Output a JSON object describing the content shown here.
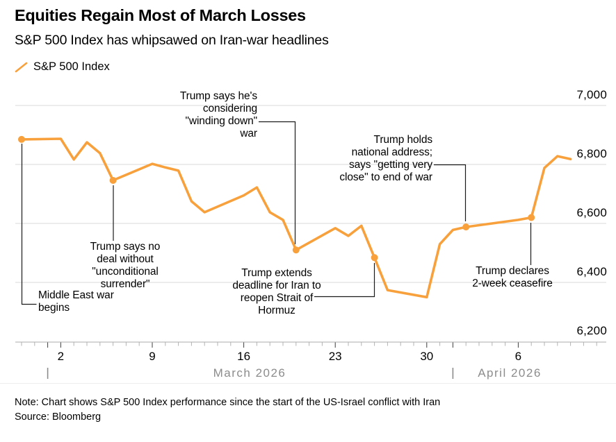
{
  "header": {
    "title": "Equities Regain Most of March Losses",
    "subtitle": "S&P 500 Index has whipsawed on Iran-war headlines"
  },
  "footer": {
    "note": "Note: Chart shows S&P 500 Index performance since the start of the US-Israel conflict with Iran",
    "source": "Source: Bloomberg"
  },
  "colors": {
    "series_orange": "#F8A13C",
    "gridline": "#D9D9D9",
    "axis_line": "#ABABAB",
    "minor_tick": "#B3B3B3",
    "major_tick": "#3C3C3C",
    "month_gray": "#8C8C8C",
    "connector": "#1A1A1A"
  },
  "chart_data": {
    "type": "line",
    "title": "Equities Regain Most of March Losses",
    "subtitle": "S&P 500 Index has whipsawed on Iran-war headlines",
    "legend": [
      {
        "label": "S&P 500 Index",
        "color": "#F8A13C"
      }
    ],
    "ylim": [
      6200,
      7000
    ],
    "grid": true,
    "legend_position": "top-left",
    "y_ticks": [
      {
        "value": 7000,
        "label": "7,000"
      },
      {
        "value": 6800,
        "label": "6,800"
      },
      {
        "value": 6600,
        "label": "6,600"
      },
      {
        "value": 6400,
        "label": "6,400"
      },
      {
        "value": 6200,
        "label": "6,200"
      }
    ],
    "x_ticks": [
      {
        "day": 3,
        "label": "2"
      },
      {
        "day": 10,
        "label": "9"
      },
      {
        "day": 17,
        "label": "16"
      },
      {
        "day": 24,
        "label": "23"
      },
      {
        "day": 31,
        "label": "30"
      },
      {
        "day": 38,
        "label": "6"
      }
    ],
    "months": [
      {
        "day": 2,
        "label": "March 2026"
      },
      {
        "day": 33,
        "label": "April 2026"
      }
    ],
    "series": [
      {
        "name": "S&P 500 Index",
        "color": "#F8A13C",
        "points": [
          {
            "day": 0,
            "date": "Feb 27",
            "value": 6885
          },
          {
            "day": 3,
            "date": "Mar 2",
            "value": 6887
          },
          {
            "day": 4,
            "date": "Mar 3",
            "value": 6817
          },
          {
            "day": 5,
            "date": "Mar 4",
            "value": 6875
          },
          {
            "day": 6,
            "date": "Mar 5",
            "value": 6838
          },
          {
            "day": 7,
            "date": "Mar 6",
            "value": 6746
          },
          {
            "day": 10,
            "date": "Mar 9",
            "value": 6802
          },
          {
            "day": 11,
            "date": "Mar 10",
            "value": 6790
          },
          {
            "day": 12,
            "date": "Mar 11",
            "value": 6779
          },
          {
            "day": 13,
            "date": "Mar 12",
            "value": 6675
          },
          {
            "day": 14,
            "date": "Mar 13",
            "value": 6638
          },
          {
            "day": 17,
            "date": "Mar 16",
            "value": 6695
          },
          {
            "day": 18,
            "date": "Mar 17",
            "value": 6722
          },
          {
            "day": 19,
            "date": "Mar 18",
            "value": 6638
          },
          {
            "day": 20,
            "date": "Mar 19",
            "value": 6612
          },
          {
            "day": 21,
            "date": "Mar 20",
            "value": 6510
          },
          {
            "day": 24,
            "date": "Mar 23",
            "value": 6584
          },
          {
            "day": 25,
            "date": "Mar 24",
            "value": 6558
          },
          {
            "day": 26,
            "date": "Mar 25",
            "value": 6592
          },
          {
            "day": 27,
            "date": "Mar 26",
            "value": 6484
          },
          {
            "day": 28,
            "date": "Mar 27",
            "value": 6374
          },
          {
            "day": 31,
            "date": "Mar 30",
            "value": 6350
          },
          {
            "day": 32,
            "date": "Mar 31",
            "value": 6530
          },
          {
            "day": 33,
            "date": "Apr 1",
            "value": 6578
          },
          {
            "day": 34,
            "date": "Apr 2",
            "value": 6588
          },
          {
            "day": 38,
            "date": "Apr 6",
            "value": 6612
          },
          {
            "day": 39,
            "date": "Apr 7",
            "value": 6620
          },
          {
            "day": 40,
            "date": "Apr 8",
            "value": 6788
          },
          {
            "day": 41,
            "date": "Apr 9",
            "value": 6828
          },
          {
            "day": 42,
            "date": "Apr 10",
            "value": 6818
          }
        ]
      }
    ],
    "events": [
      {
        "id": "war",
        "day": 0,
        "date": "Feb 27",
        "value": 6885,
        "text": "Middle East war\nbegins"
      },
      {
        "id": "surrender",
        "day": 7,
        "date": "Mar 6",
        "value": 6746,
        "text": "Trump says no\ndeal without\n\"unconditional\nsurrender\""
      },
      {
        "id": "winding",
        "day": 21,
        "date": "Mar 20",
        "value": 6510,
        "text": "Trump says he's\nconsidering\n\"winding down\"\nwar"
      },
      {
        "id": "hormuz",
        "day": 27,
        "date": "Mar 26",
        "value": 6484,
        "text": "Trump extends\ndeadline for Iran to\nreopen Strait of\nHormuz"
      },
      {
        "id": "address",
        "day": 34,
        "date": "Apr 2",
        "value": 6588,
        "text": "Trump holds\nnational address;\nsays \"getting very\nclose\" to end of war"
      },
      {
        "id": "ceasefire",
        "day": 39,
        "date": "Apr 7",
        "value": 6620,
        "text": "Trump declares\n2-week ceasefire"
      }
    ]
  }
}
